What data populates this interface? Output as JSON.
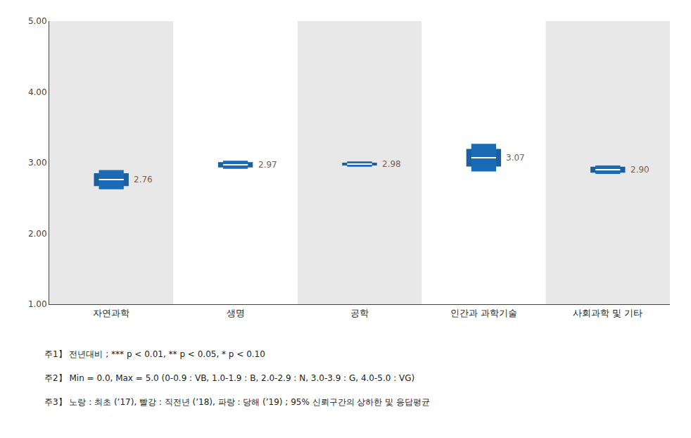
{
  "chart_data": {
    "type": "interval",
    "categories": [
      "자연과학",
      "생명",
      "공학",
      "인간과 과학기술",
      "사회과학 및 기타"
    ],
    "values": [
      2.76,
      2.97,
      2.98,
      3.07,
      2.9
    ],
    "value_labels": [
      "2.76",
      "2.97",
      "2.98",
      "3.07",
      "2.90"
    ],
    "data_labels": true,
    "series": [
      {
        "color": "#1a5fa0",
        "lower": [
          2.67,
          2.932,
          2.96,
          2.945,
          2.858
        ],
        "upper": [
          2.85,
          3.008,
          3.0,
          3.195,
          2.942
        ]
      },
      {
        "color": "#1a6ab5",
        "lower": [
          2.625,
          2.912,
          2.942,
          2.875,
          2.84
        ],
        "upper": [
          2.895,
          3.028,
          3.018,
          3.265,
          2.96
        ]
      }
    ],
    "mean_color": "#FFFFFF",
    "label_color": "#7a6050",
    "band_colors": [
      "#e8e8e8",
      "#FFFFFF"
    ],
    "ylim": [
      1.0,
      5.0
    ],
    "yticks": [
      {
        "value": 1.0,
        "label": "1.00"
      },
      {
        "value": 2.0,
        "label": "2.00"
      },
      {
        "value": 3.0,
        "label": "3.00"
      },
      {
        "value": 4.0,
        "label": "4.00"
      },
      {
        "value": 5.0,
        "label": "5.00"
      }
    ],
    "grid": false,
    "footnotes": [
      "주1】 전년대비 ; *** p < 0.01, ** p < 0.05, * p < 0.10",
      "주2】 Min = 0.0, Max = 5.0 (0-0.9 : VB, 1.0-1.9 : B, 2.0-2.9 : N, 3.0-3.9 : G, 4.0-5.0 : VG)",
      "주3】 노랑 : 최초 (’17), 빨강 : 직전년 (’18), 파랑 : 당해 (’19) ; 95% 신뢰구간의 상하한 및 응답평균"
    ]
  }
}
